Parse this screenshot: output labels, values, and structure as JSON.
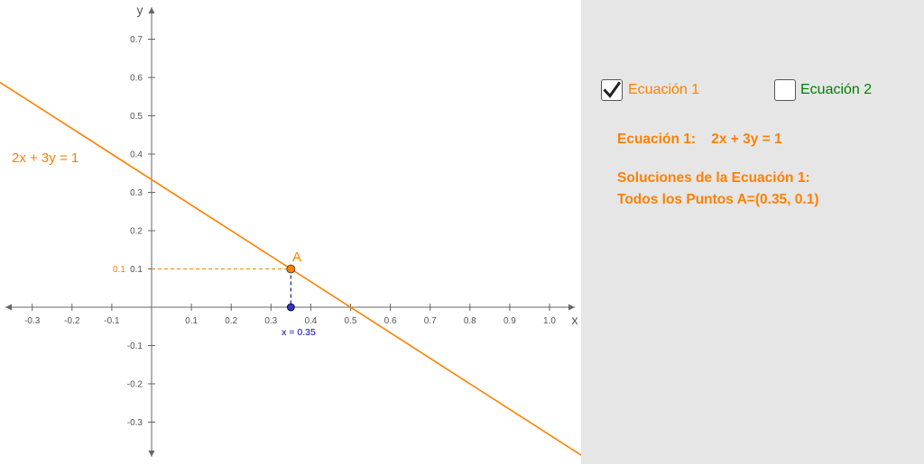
{
  "graph": {
    "axis_x_label": "x",
    "axis_y_label": "y",
    "x_ticks": [
      "-0.3",
      "-0.2",
      "-0.1",
      "0.1",
      "0.2",
      "0.3",
      "0.4",
      "0.5",
      "0.6",
      "0.7",
      "0.8",
      "0.9",
      "1.0"
    ],
    "y_ticks": [
      "0.7",
      "0.6",
      "0.5",
      "0.4",
      "0.3",
      "0.2",
      "0.1",
      "-0.1",
      "-0.2",
      "-0.3"
    ],
    "line_label": "2x + 3y = 1",
    "line_coefficients": {
      "a": 2,
      "b": 3,
      "c": 1
    },
    "point_label": "A",
    "point_value": {
      "x": 0.35,
      "y": 0.1
    },
    "y_marker_label": "0.1",
    "x_marker_label": "x = 0.35",
    "colors": {
      "line": "#ff8000",
      "point_a": "#ff8000",
      "point_x": "#3333cc",
      "axis": "#666666",
      "x_marker": "#0000aa"
    }
  },
  "panel": {
    "checkbox1": {
      "label": "Ecuación 1",
      "checked": true,
      "icon": "check-icon"
    },
    "checkbox2": {
      "label": "Ecuación 2",
      "checked": false
    },
    "equation_title": "Ecuación 1:    2x + 3y = 1",
    "solutions_title": "Soluciones de la Ecuación 1:",
    "solutions_points": "Todos los Puntos A=(0.35, 0.1)",
    "colors": {
      "text": "#ff8000",
      "eq2": "#008000",
      "background": "#e6e6e6"
    }
  }
}
